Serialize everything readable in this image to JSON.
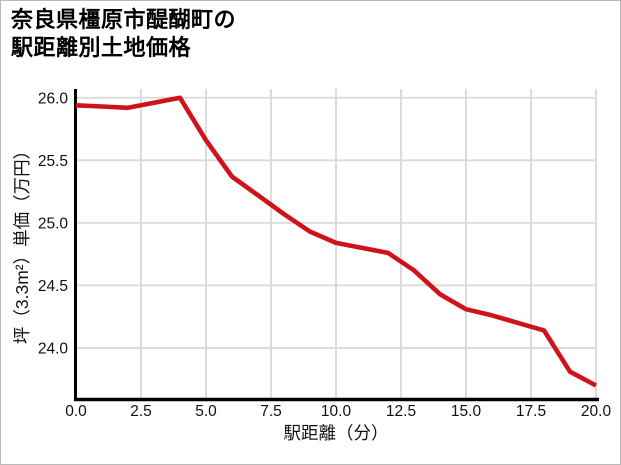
{
  "page": {
    "background": "#ffffff",
    "border_color": "#b9b9b9"
  },
  "title": {
    "line1": "奈良県橿原市醍醐町の",
    "line2": "駅距離別土地価格"
  },
  "chart_data": {
    "type": "line",
    "title": "奈良県橿原市醍醐町の駅距離別土地価格",
    "xlabel": "駅距離（分）",
    "ylabel": "坪（3.3m²）単価（万円）",
    "x": [
      0,
      1,
      2,
      3,
      4,
      5,
      6,
      7,
      8,
      9,
      10,
      11,
      12,
      13,
      14,
      15,
      16,
      17,
      18,
      19,
      20
    ],
    "values": [
      25.94,
      25.93,
      25.92,
      25.96,
      26.0,
      25.66,
      25.37,
      25.22,
      25.07,
      24.93,
      24.84,
      24.8,
      24.76,
      24.62,
      24.43,
      24.31,
      24.26,
      24.2,
      24.14,
      23.81,
      23.7
    ],
    "xtick_labels": [
      "0.0",
      "2.5",
      "5.0",
      "7.5",
      "10.0",
      "12.5",
      "15.0",
      "17.5",
      "20.0"
    ],
    "ytick_labels": [
      "26.0",
      "25.5",
      "25.0",
      "24.5",
      "24.0"
    ],
    "xlim": [
      0,
      20
    ],
    "ylim": [
      23.6,
      26.07
    ],
    "grid": true,
    "legend": "none",
    "line_color": "#d0121b",
    "grid_color": "#d9d9d9",
    "axis_color": "#000000",
    "tick_color": "#111111"
  }
}
